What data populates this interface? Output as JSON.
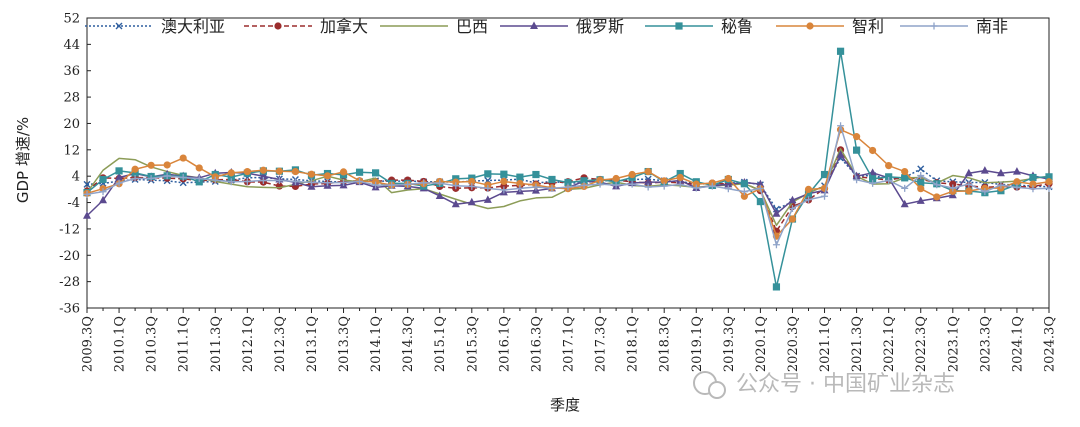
{
  "chart_data": {
    "type": "line",
    "xlabel": "季度",
    "ylabel": "GDP 增速/%",
    "ylim": [
      -36,
      52
    ],
    "yticks": [
      52,
      44,
      36,
      28,
      20,
      12,
      4,
      -4,
      -12,
      -20,
      -28,
      -36
    ],
    "x": [
      "2009.3Q",
      "2009.4Q",
      "2010.1Q",
      "2010.2Q",
      "2010.3Q",
      "2010.4Q",
      "2011.1Q",
      "2011.2Q",
      "2011.3Q",
      "2011.4Q",
      "2012.1Q",
      "2012.2Q",
      "2012.3Q",
      "2012.4Q",
      "2013.1Q",
      "2013.2Q",
      "2013.3Q",
      "2013.4Q",
      "2014.1Q",
      "2014.2Q",
      "2014.3Q",
      "2014.4Q",
      "2015.1Q",
      "2015.2Q",
      "2015.3Q",
      "2015.4Q",
      "2016.1Q",
      "2016.2Q",
      "2016.3Q",
      "2016.4Q",
      "2017.1Q",
      "2017.2Q",
      "2017.3Q",
      "2017.4Q",
      "2018.1Q",
      "2018.2Q",
      "2018.3Q",
      "2018.4Q",
      "2019.1Q",
      "2019.2Q",
      "2019.3Q",
      "2019.4Q",
      "2020.1Q",
      "2020.2Q",
      "2020.3Q",
      "2020.4Q",
      "2021.1Q",
      "2021.2Q",
      "2021.3Q",
      "2021.4Q",
      "2022.1Q",
      "2022.2Q",
      "2022.3Q",
      "2022.4Q",
      "2023.1Q",
      "2023.2Q",
      "2023.3Q",
      "2023.4Q",
      "2024.1Q",
      "2024.2Q",
      "2024.3Q"
    ],
    "xtick_labels": [
      "2009.3Q",
      "2010.1Q",
      "2010.3Q",
      "2011.1Q",
      "2011.3Q",
      "2012.1Q",
      "2012.3Q",
      "2013.1Q",
      "2013.3Q",
      "2014.1Q",
      "2014.3Q",
      "2015.1Q",
      "2015.3Q",
      "2016.1Q",
      "2016.3Q",
      "2017.1Q",
      "2017.3Q",
      "2018.1Q",
      "2018.3Q",
      "2019.1Q",
      "2019.3Q",
      "2020.1Q",
      "2020.3Q",
      "2021.1Q",
      "2021.3Q",
      "2022.1Q",
      "2022.3Q",
      "2023.1Q",
      "2023.3Q",
      "2024.1Q",
      "2024.3Q"
    ],
    "legend_position": "top",
    "series": [
      {
        "name": "澳大利亚",
        "color": "#2f5f9f",
        "dash": "2,2",
        "marker": "x",
        "values": [
          1.5,
          1.8,
          2.5,
          3.0,
          2.8,
          2.6,
          2.0,
          2.2,
          2.4,
          2.8,
          3.5,
          3.6,
          3.2,
          3.0,
          2.6,
          2.4,
          2.2,
          2.4,
          2.6,
          2.4,
          2.6,
          2.3,
          2.3,
          2.2,
          2.5,
          2.7,
          2.8,
          3.1,
          1.9,
          2.4,
          1.9,
          2.0,
          2.7,
          2.5,
          3.0,
          3.1,
          2.6,
          2.3,
          1.8,
          1.6,
          1.9,
          2.2,
          1.4,
          -6.0,
          -3.8,
          -1.1,
          1.1,
          9.5,
          4.0,
          4.2,
          3.2,
          3.6,
          6.2,
          2.6,
          2.3,
          2.1,
          2.1,
          1.5,
          1.3,
          1.0,
          0.8
        ]
      },
      {
        "name": "加拿大",
        "color": "#9b2d2d",
        "dash": "5,3",
        "marker": "circle",
        "values": [
          -0.5,
          3.5,
          3.3,
          3.6,
          3.5,
          3.4,
          3.2,
          2.6,
          2.9,
          3.0,
          2.3,
          2.2,
          1.0,
          0.9,
          1.6,
          1.8,
          2.4,
          2.6,
          2.4,
          2.8,
          2.8,
          2.4,
          0.9,
          0.3,
          0.5,
          0.4,
          1.0,
          1.2,
          1.6,
          2.0,
          2.3,
          3.5,
          3.0,
          2.8,
          2.3,
          1.9,
          2.2,
          2.0,
          1.5,
          1.9,
          1.6,
          1.8,
          -0.4,
          -12.7,
          -5.2,
          -3.2,
          0.3,
          12.0,
          3.8,
          3.4,
          2.8,
          3.7,
          3.1,
          2.0,
          1.6,
          1.1,
          0.6,
          0.9,
          0.7,
          0.9,
          1.7
        ]
      },
      {
        "name": "巴西",
        "color": "#8c9c57",
        "dash": "",
        "marker": "none",
        "values": [
          -1.0,
          5.8,
          9.4,
          9.0,
          6.8,
          5.4,
          4.2,
          3.5,
          2.4,
          1.6,
          0.8,
          0.6,
          0.5,
          1.5,
          2.6,
          4.0,
          2.8,
          2.3,
          3.4,
          -1.0,
          -0.2,
          0.2,
          -1.4,
          -3.0,
          -4.5,
          -5.8,
          -5.2,
          -3.5,
          -2.6,
          -2.4,
          0.0,
          0.3,
          1.4,
          2.2,
          1.2,
          0.9,
          1.4,
          1.1,
          0.6,
          1.1,
          1.3,
          1.7,
          -0.2,
          -10.9,
          -3.9,
          -1.1,
          1.0,
          12.3,
          4.0,
          1.6,
          1.7,
          3.5,
          3.6,
          1.9,
          4.2,
          3.5,
          2.0,
          2.2,
          2.5,
          3.3,
          4.0
        ]
      },
      {
        "name": "俄罗斯",
        "color": "#5b4a8f",
        "dash": "",
        "marker": "triangle",
        "values": [
          -8.0,
          -3.3,
          3.6,
          4.8,
          3.8,
          4.6,
          4.0,
          3.5,
          4.9,
          5.1,
          4.9,
          4.0,
          3.0,
          2.1,
          0.8,
          1.1,
          1.2,
          2.2,
          0.6,
          1.1,
          0.9,
          0.3,
          -2.0,
          -4.5,
          -3.9,
          -3.2,
          -0.9,
          -0.6,
          -0.4,
          0.3,
          0.5,
          2.5,
          2.2,
          0.9,
          1.9,
          2.2,
          2.2,
          2.7,
          0.4,
          1.1,
          1.5,
          2.1,
          1.6,
          -7.4,
          -3.3,
          -1.3,
          -0.3,
          10.5,
          4.0,
          5.0,
          3.5,
          -4.5,
          -3.5,
          -2.7,
          -1.8,
          4.9,
          5.7,
          4.9,
          5.4,
          4.1,
          3.1
        ]
      },
      {
        "name": "秘鲁",
        "color": "#35919a",
        "dash": "",
        "marker": "square",
        "values": [
          -1.0,
          3.0,
          5.6,
          5.0,
          3.9,
          4.1,
          4.0,
          2.3,
          4.5,
          3.7,
          4.9,
          5.6,
          5.5,
          5.9,
          4.3,
          4.8,
          4.4,
          5.2,
          5.0,
          1.8,
          1.8,
          1.0,
          1.8,
          3.2,
          3.4,
          4.7,
          4.6,
          3.7,
          4.5,
          3.0,
          2.1,
          2.6,
          2.9,
          2.3,
          3.6,
          5.4,
          2.3,
          4.8,
          2.3,
          1.2,
          3.0,
          1.7,
          -3.7,
          -29.6,
          -9.0,
          -1.4,
          4.5,
          41.9,
          11.9,
          3.2,
          3.8,
          3.5,
          2.0,
          1.7,
          -0.4,
          -0.5,
          -1.0,
          -0.4,
          1.4,
          3.6,
          3.8
        ]
      },
      {
        "name": "智利",
        "color": "#d9853b",
        "dash": "",
        "marker": "circle",
        "values": [
          -1.2,
          0.2,
          1.7,
          6.1,
          7.3,
          7.4,
          9.5,
          6.5,
          3.8,
          5.0,
          5.4,
          5.8,
          5.5,
          5.4,
          4.6,
          4.1,
          5.3,
          2.6,
          2.2,
          1.3,
          1.5,
          1.7,
          2.4,
          2.2,
          2.4,
          1.3,
          2.4,
          1.8,
          1.3,
          0.5,
          0.2,
          0.9,
          2.8,
          3.3,
          4.5,
          5.4,
          2.6,
          3.6,
          1.6,
          1.9,
          3.3,
          -2.1,
          0.2,
          -14.2,
          -9.0,
          0.0,
          0.3,
          18.1,
          16.0,
          11.8,
          7.2,
          5.4,
          0.2,
          -2.3,
          -0.6,
          -0.5,
          0.3,
          0.4,
          2.3,
          1.6,
          2.3
        ]
      },
      {
        "name": "南非",
        "color": "#8fa3c9",
        "dash": "",
        "marker": "plus",
        "values": [
          -1.5,
          -0.7,
          1.9,
          3.3,
          3.3,
          4.1,
          3.6,
          3.3,
          2.8,
          2.3,
          2.4,
          2.7,
          2.7,
          2.4,
          2.1,
          2.0,
          2.1,
          2.4,
          1.3,
          1.3,
          1.5,
          2.0,
          1.9,
          1.1,
          0.9,
          0.3,
          -0.2,
          0.3,
          0.7,
          0.3,
          0.7,
          1.2,
          1.6,
          1.3,
          1.6,
          0.7,
          1.0,
          1.5,
          0.4,
          1.0,
          0.2,
          -0.7,
          0.3,
          -16.8,
          -5.8,
          -3.1,
          -2.1,
          19.3,
          2.9,
          1.8,
          2.7,
          0.3,
          4.2,
          1.4,
          0.4,
          1.6,
          -0.7,
          1.3,
          0.6,
          0.2,
          0.3
        ]
      }
    ],
    "annotations": [
      "公众号 · 中国矿业杂志"
    ]
  }
}
